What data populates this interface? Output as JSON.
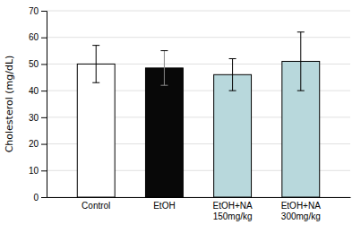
{
  "chart_data": {
    "type": "bar",
    "categories": [
      "Control",
      "EtOH",
      "EtOH+NA\n150mg/kg",
      "EtOH+NA\n300mg/kg"
    ],
    "values": [
      50.0,
      48.5,
      46.0,
      51.0
    ],
    "errors": [
      7.0,
      6.5,
      6.0,
      11.0
    ],
    "colors": [
      "#ffffff",
      "#080808",
      "#b8d8dc",
      "#b8d8dc"
    ],
    "ylabel": "Cholesterol (mg/dL)",
    "ylim": [
      0,
      70
    ],
    "yticks": [
      0,
      10,
      20,
      30,
      40,
      50,
      60,
      70
    ],
    "grid": true
  }
}
